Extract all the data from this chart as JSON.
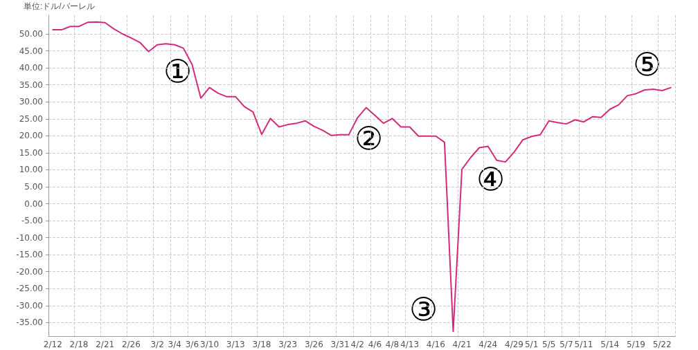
{
  "chart_data": {
    "type": "line",
    "ylabel": "単位:ドル/バーレル",
    "categories": [
      "2/12",
      null,
      null,
      "2/18",
      null,
      null,
      "2/21",
      null,
      null,
      "2/26",
      null,
      null,
      "3/2",
      null,
      "3/4",
      null,
      "3/6",
      null,
      "3/10",
      null,
      null,
      "3/13",
      null,
      null,
      "3/18",
      null,
      null,
      "3/23",
      null,
      null,
      "3/26",
      null,
      null,
      "3/31",
      null,
      "4/2",
      null,
      "4/6",
      null,
      "4/8",
      null,
      "4/13",
      null,
      null,
      "4/16",
      null,
      null,
      "4/21",
      null,
      null,
      "4/24",
      null,
      null,
      "4/29",
      null,
      "5/1",
      null,
      "5/5",
      null,
      "5/7",
      null,
      "5/11",
      null,
      null,
      "5/14",
      null,
      null,
      "5/19",
      null,
      null,
      "5/22",
      null
    ],
    "series": [
      {
        "color": "#d42a7c",
        "values": [
          51.2,
          51.2,
          52.2,
          52.2,
          53.4,
          53.5,
          53.3,
          51.5,
          50.0,
          48.8,
          47.5,
          44.8,
          46.8,
          47.1,
          46.8,
          45.8,
          41.0,
          31.1,
          34.2,
          32.5,
          31.5,
          31.5,
          28.6,
          27.0,
          20.4,
          25.1,
          22.6,
          23.3,
          23.7,
          24.4,
          22.8,
          21.6,
          20.1,
          20.3,
          20.3,
          25.3,
          28.3,
          26.0,
          23.7,
          25.1,
          22.6,
          22.6,
          19.9,
          19.9,
          19.9,
          18.1,
          -37.6,
          10.1,
          13.6,
          16.5,
          16.9,
          12.8,
          12.3,
          15.2,
          18.8,
          19.8,
          20.3,
          24.4,
          23.9,
          23.5,
          24.7,
          24.1,
          25.6,
          25.4,
          27.8,
          29.1,
          31.8,
          32.4,
          33.5,
          33.7,
          33.3,
          34.2
        ]
      }
    ],
    "ylim": [
      -39,
      55.5
    ],
    "yticks": [
      {
        "value": -35,
        "label": "-35.00"
      },
      {
        "value": -30,
        "label": "-30.00"
      },
      {
        "value": -25,
        "label": "-25.00"
      },
      {
        "value": -20,
        "label": "-20.00"
      },
      {
        "value": -15,
        "label": "-15.00"
      },
      {
        "value": -10,
        "label": "-10.00"
      },
      {
        "value": -5,
        "label": "-5.00"
      },
      {
        "value": 0,
        "label": "0.00"
      },
      {
        "value": 5,
        "label": "5.00"
      },
      {
        "value": 10,
        "label": "10.00"
      },
      {
        "value": 15,
        "label": "15.00"
      },
      {
        "value": 20,
        "label": "20.00"
      },
      {
        "value": 25,
        "label": "25.00"
      },
      {
        "value": 30,
        "label": "30.00"
      },
      {
        "value": 35,
        "label": "35.00"
      },
      {
        "value": 40,
        "label": "40.00"
      },
      {
        "value": 45,
        "label": "45.00"
      },
      {
        "value": 50,
        "label": "50.00"
      }
    ],
    "annotations": [
      "①",
      "②",
      "③",
      "④",
      "⑤"
    ],
    "grid": true,
    "marker": "none",
    "line_style": "solid"
  }
}
